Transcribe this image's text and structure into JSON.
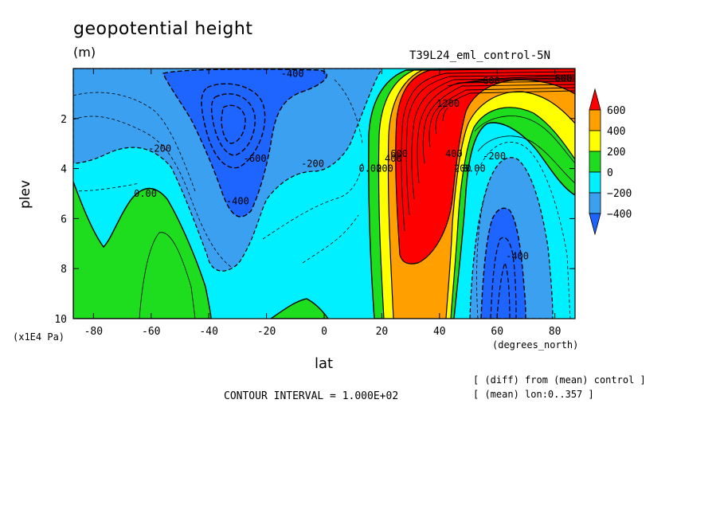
{
  "title": "geopotential height",
  "units": "(m)",
  "run_id": "T39L24_eml_control-5N",
  "x_axis_label": "lat",
  "x_units": "(degrees_north)",
  "y_axis_label": "plev",
  "y_units": "(x1E4 Pa)",
  "contour_interval": "CONTOUR INTERVAL = 1.000E+02",
  "notes": [
    "[ (diff) from (mean) control ]",
    "[ (mean) lon:0..357 ]"
  ],
  "colors": {
    "below_-400": "#1e64ff",
    "-400_-200": "#3ca0f0",
    "-200_0": "#00f0ff",
    "0_200": "#1edc1e",
    "200_400": "#ffff00",
    "400_600": "#ffa000",
    "above_600": "#ff0000"
  },
  "chart_data": {
    "type": "heatmap",
    "subtype": "filled contour",
    "title": "geopotential height",
    "xlabel": "lat",
    "ylabel": "plev",
    "xlim": [
      -87,
      87
    ],
    "ylim": [
      0,
      10
    ],
    "y_inverted": true,
    "x_ticks": [
      "-80",
      "-60",
      "-40",
      "-20",
      "0",
      "20",
      "40",
      "60",
      "80"
    ],
    "y_ticks": [
      "2",
      "4",
      "6",
      "8",
      "10"
    ],
    "colorbar": {
      "labels": [
        "600",
        "400",
        "200",
        "0",
        "−200",
        "−400"
      ],
      "levels": [
        -400,
        -200,
        0,
        200,
        400,
        600
      ],
      "colors": [
        "#1e64ff",
        "#3ca0f0",
        "#00f0ff",
        "#1edc1e",
        "#ffff00",
        "#ffa000",
        "#ff0000"
      ]
    },
    "contour_labels": [
      {
        "text": "-400",
        "lat": -11,
        "plev": 0.2
      },
      {
        "text": "-200",
        "lat": -57,
        "plev": 3.2
      },
      {
        "text": "0.00",
        "lat": -62,
        "plev": 5.0
      },
      {
        "text": "-600",
        "lat": -24,
        "plev": 3.6
      },
      {
        "text": "-400",
        "lat": -30,
        "plev": 5.3
      },
      {
        "text": "-200",
        "lat": -4,
        "plev": 3.8
      },
      {
        "text": "0.00",
        "lat": 16,
        "plev": 4.0
      },
      {
        "text": "200",
        "lat": 21,
        "plev": 4.0
      },
      {
        "text": "400",
        "lat": 24,
        "plev": 3.6
      },
      {
        "text": "600",
        "lat": 26,
        "plev": 3.4
      },
      {
        "text": "1200",
        "lat": 43,
        "plev": 1.4
      },
      {
        "text": "600",
        "lat": 58,
        "plev": 0.5
      },
      {
        "text": "400",
        "lat": 45,
        "plev": 3.4
      },
      {
        "text": "200",
        "lat": 48,
        "plev": 4.0
      },
      {
        "text": "0.00",
        "lat": 52,
        "plev": 4.0
      },
      {
        "text": "-200",
        "lat": 59,
        "plev": 3.5
      },
      {
        "text": "-400",
        "lat": 67,
        "plev": 7.5
      },
      {
        "text": "600",
        "lat": 83,
        "plev": 0.4
      }
    ]
  }
}
